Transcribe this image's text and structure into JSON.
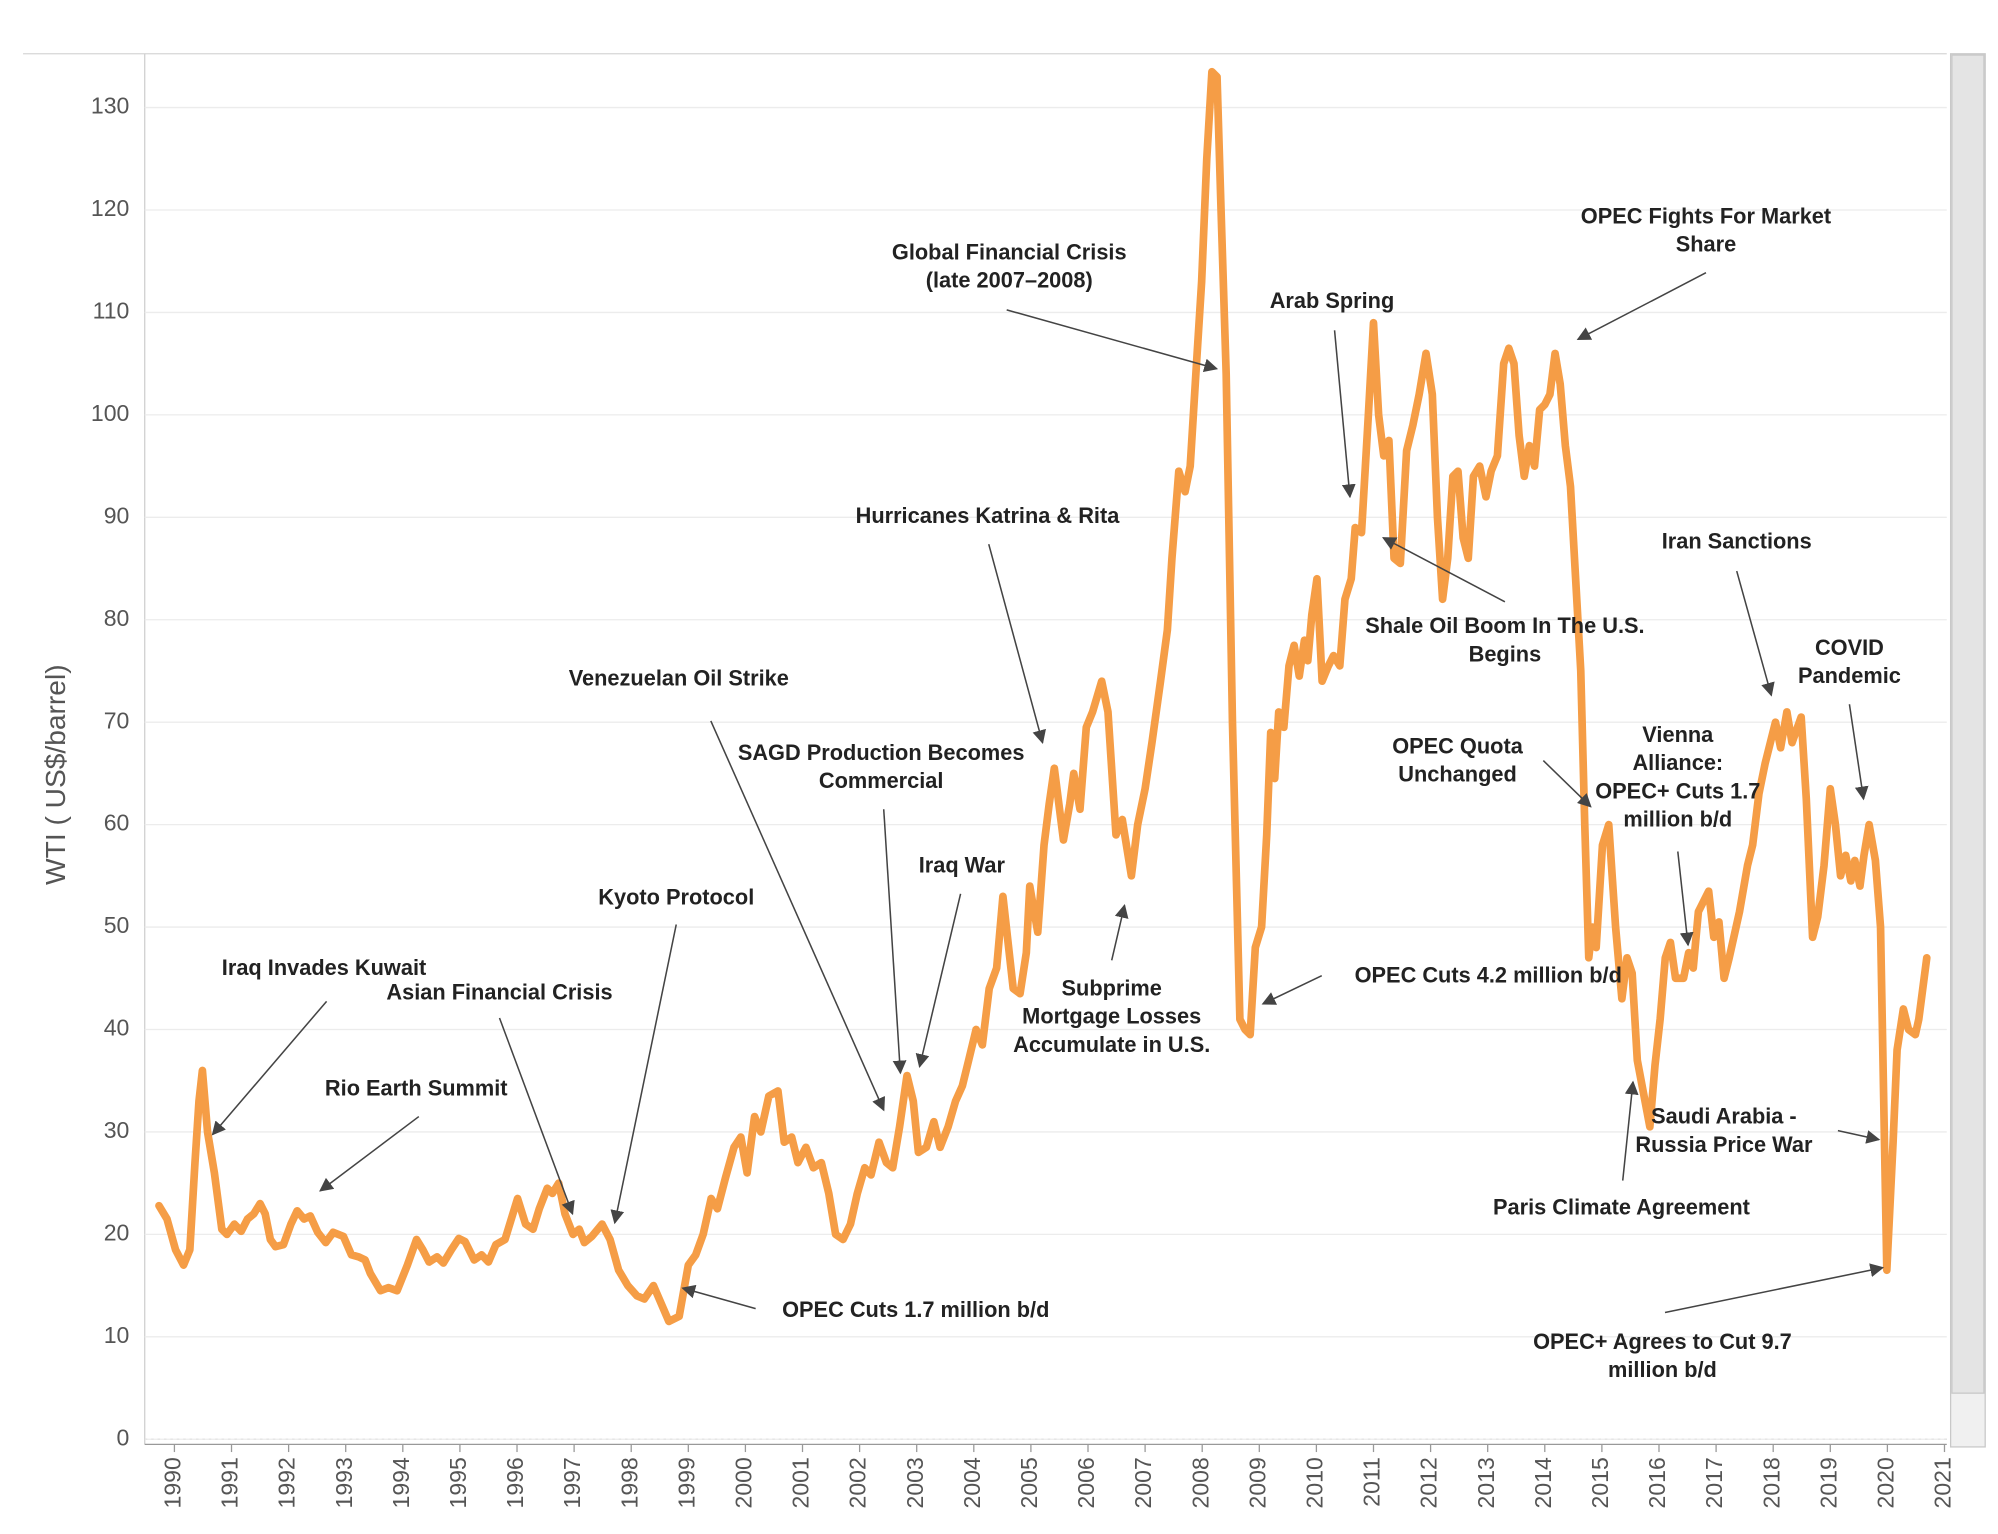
{
  "chart_data": {
    "type": "line",
    "y_label": "WTI ( US$/barrel)",
    "xlim": [
      1989.48,
      2021.04
    ],
    "xticks": [
      1990,
      1991,
      1992,
      1993,
      1994,
      1995,
      1996,
      1997,
      1998,
      1999,
      2000,
      2001,
      2002,
      2003,
      2004,
      2005,
      2006,
      2007,
      2008,
      2009,
      2010,
      2011,
      2012,
      2013,
      2014,
      2015,
      2016,
      2017,
      2018,
      2019,
      2020,
      2021
    ],
    "ylim": [
      0,
      135
    ],
    "yticks": [
      0,
      10,
      20,
      30,
      40,
      50,
      60,
      70,
      80,
      90,
      100,
      110,
      120,
      130
    ],
    "grid": true,
    "x": [
      1989.73,
      1989.87,
      1990.02,
      1990.16,
      1990.27,
      1990.36,
      1990.43,
      1990.49,
      1990.58,
      1990.7,
      1990.83,
      1990.92,
      1991.05,
      1991.17,
      1991.28,
      1991.39,
      1991.5,
      1991.59,
      1991.68,
      1991.77,
      1991.91,
      1992.04,
      1992.15,
      1992.27,
      1992.38,
      1992.51,
      1992.65,
      1992.78,
      1992.96,
      1993.1,
      1993.23,
      1993.34,
      1993.43,
      1993.61,
      1993.75,
      1993.9,
      1994.08,
      1994.24,
      1994.35,
      1994.46,
      1994.6,
      1994.71,
      1994.85,
      1994.98,
      1995.09,
      1995.25,
      1995.38,
      1995.5,
      1995.63,
      1995.79,
      1996.01,
      1996.15,
      1996.28,
      1996.39,
      1996.53,
      1996.62,
      1996.73,
      1996.84,
      1996.98,
      1997.09,
      1997.18,
      1997.31,
      1997.49,
      1997.63,
      1997.78,
      1997.94,
      1998.1,
      1998.23,
      1998.39,
      1998.66,
      1998.84,
      1999.0,
      1999.13,
      1999.26,
      1999.4,
      1999.51,
      1999.65,
      1999.8,
      1999.92,
      2000.03,
      2000.16,
      2000.27,
      2000.41,
      2000.57,
      2000.68,
      2000.81,
      2000.92,
      2001.06,
      2001.19,
      2001.33,
      2001.46,
      2001.58,
      2001.71,
      2001.84,
      2001.96,
      2002.09,
      2002.2,
      2002.34,
      2002.47,
      2002.58,
      2002.7,
      2002.83,
      2002.94,
      2003.03,
      2003.17,
      2003.3,
      2003.41,
      2003.55,
      2003.68,
      2003.8,
      2003.91,
      2004.04,
      2004.15,
      2004.27,
      2004.4,
      2004.51,
      2004.69,
      2004.81,
      2004.92,
      2004.98,
      2005.12,
      2005.23,
      2005.32,
      2005.41,
      2005.57,
      2005.68,
      2005.75,
      2005.86,
      2005.97,
      2006.08,
      2006.24,
      2006.35,
      2006.49,
      2006.6,
      2006.76,
      2006.87,
      2007.0,
      2007.12,
      2007.27,
      2007.39,
      2007.47,
      2007.59,
      2007.7,
      2007.79,
      2007.9,
      2007.99,
      2008.08,
      2008.17,
      2008.26,
      2008.33,
      2008.42,
      2008.53,
      2008.66,
      2008.75,
      2008.84,
      2008.93,
      2009.04,
      2009.13,
      2009.2,
      2009.27,
      2009.34,
      2009.43,
      2009.52,
      2009.61,
      2009.7,
      2009.79,
      2009.85,
      2009.92,
      2010.01,
      2010.1,
      2010.21,
      2010.3,
      2010.41,
      2010.5,
      2010.61,
      2010.68,
      2010.79,
      2010.91,
      2011.0,
      2011.09,
      2011.18,
      2011.27,
      2011.36,
      2011.47,
      2011.58,
      2011.69,
      2011.8,
      2011.92,
      2012.03,
      2012.12,
      2012.21,
      2012.3,
      2012.39,
      2012.48,
      2012.57,
      2012.66,
      2012.75,
      2012.86,
      2012.97,
      2013.06,
      2013.17,
      2013.28,
      2013.37,
      2013.46,
      2013.55,
      2013.64,
      2013.73,
      2013.82,
      2013.91,
      2014.0,
      2014.09,
      2014.18,
      2014.27,
      2014.36,
      2014.45,
      2014.54,
      2014.63,
      2014.7,
      2014.77,
      2014.83,
      2014.9,
      2015.01,
      2015.12,
      2015.24,
      2015.35,
      2015.44,
      2015.53,
      2015.62,
      2015.84,
      2015.93,
      2016.02,
      2016.11,
      2016.2,
      2016.29,
      2016.43,
      2016.52,
      2016.6,
      2016.69,
      2016.78,
      2016.87,
      2016.96,
      2017.05,
      2017.14,
      2017.23,
      2017.41,
      2017.55,
      2017.64,
      2017.75,
      2017.86,
      2018.04,
      2018.13,
      2018.24,
      2018.33,
      2018.49,
      2018.58,
      2018.69,
      2018.78,
      2018.89,
      2019.0,
      2019.09,
      2019.18,
      2019.27,
      2019.36,
      2019.43,
      2019.52,
      2019.59,
      2019.68,
      2019.79,
      2019.88,
      2019.99,
      2020.1,
      2020.17,
      2020.28,
      2020.37,
      2020.49,
      2020.55,
      2020.69
    ],
    "series": [
      {
        "color": "#f59d46",
        "values": [
          22.8,
          21.5,
          18.5,
          17,
          18.5,
          27,
          33,
          36,
          30,
          26,
          20.5,
          20,
          21,
          20.3,
          21.5,
          22,
          23,
          22,
          19.5,
          18.8,
          19,
          21,
          22.3,
          21.5,
          21.8,
          20.2,
          19.2,
          20.2,
          19.8,
          18,
          17.8,
          17.5,
          16.2,
          14.5,
          14.8,
          14.5,
          17,
          19.5,
          18.5,
          17.3,
          17.8,
          17.2,
          18.5,
          19.6,
          19.3,
          17.5,
          18,
          17.3,
          19,
          19.5,
          23.5,
          21,
          20.5,
          22.5,
          24.5,
          24,
          25,
          22,
          20,
          20.5,
          19.2,
          19.8,
          21,
          19.5,
          16.5,
          15,
          14,
          13.7,
          15,
          11.5,
          12,
          17,
          18,
          20,
          23.5,
          22.5,
          25.5,
          28.5,
          29.5,
          26,
          31.5,
          30,
          33.5,
          34,
          29,
          29.5,
          27,
          28.5,
          26.5,
          27,
          24,
          20,
          19.5,
          21,
          24,
          26.5,
          25.8,
          29,
          27,
          26.5,
          30.5,
          35.5,
          33,
          28,
          28.5,
          31,
          28.5,
          30.5,
          33,
          34.5,
          37,
          40,
          38.5,
          44,
          46,
          53,
          44,
          43.5,
          47.5,
          54,
          49.5,
          58,
          62,
          65.5,
          58.5,
          62,
          65,
          61.5,
          69.5,
          71,
          74,
          71,
          59,
          60.5,
          55,
          60,
          63.5,
          68,
          74,
          79,
          86,
          94.5,
          92.5,
          95,
          105,
          113,
          125,
          133.5,
          133,
          120,
          104,
          70,
          41,
          40,
          39.5,
          48,
          50,
          59,
          69,
          64.5,
          71,
          69.5,
          75.5,
          77.5,
          74.5,
          78,
          76,
          80.5,
          84,
          74,
          75.5,
          76.5,
          75.5,
          82,
          84,
          89,
          88.5,
          100,
          109,
          100,
          96,
          97.5,
          86,
          85.5,
          96.5,
          99,
          102,
          106,
          102,
          90,
          82,
          86,
          94,
          94.5,
          88,
          86,
          94,
          95,
          92,
          94.5,
          96,
          105,
          106.5,
          105,
          98,
          94,
          97,
          95,
          100.5,
          101,
          102,
          106,
          103,
          97,
          93,
          84,
          75,
          60,
          47,
          50,
          48,
          58,
          60,
          50,
          43,
          47,
          45.5,
          37,
          30.5,
          36.5,
          41,
          47,
          48.5,
          45,
          45,
          47.5,
          46,
          51.5,
          52.5,
          53.5,
          49,
          50.5,
          45,
          47,
          51.5,
          56,
          58,
          63,
          66,
          70,
          67.5,
          71,
          68,
          70.5,
          62.5,
          49,
          51,
          56,
          63.5,
          60,
          55,
          57,
          54.5,
          56.5,
          54,
          57,
          60,
          56.5,
          50,
          16.5,
          29,
          38,
          42,
          40,
          39.5,
          41,
          47
        ]
      }
    ],
    "annotations": [
      {
        "text": [
          "Iraq Invades Kuwait"
        ]
      },
      {
        "text": [
          "Asian Financial Crisis"
        ]
      },
      {
        "text": [
          "Rio Earth Summit"
        ]
      },
      {
        "text": [
          "Kyoto Protocol"
        ]
      },
      {
        "text": [
          "Venezuelan Oil Strike"
        ]
      },
      {
        "text": [
          "SAGD Production Becomes",
          "Commercial"
        ]
      },
      {
        "text": [
          "Iraq War"
        ]
      },
      {
        "text": [
          "Hurricanes Katrina & Rita"
        ]
      },
      {
        "text": [
          "Global Financial Crisis",
          "(late 2007–2008)"
        ]
      },
      {
        "text": [
          "Arab Spring"
        ]
      },
      {
        "text": [
          "Shale Oil Boom In The U.S.",
          "Begins"
        ]
      },
      {
        "text": [
          "OPEC Fights For Market",
          "Share"
        ]
      },
      {
        "text": [
          "Subprime",
          "Mortgage Losses",
          "Accumulate in U.S."
        ]
      },
      {
        "text": [
          "OPEC Cuts 4.2 million b/d"
        ]
      },
      {
        "text": [
          "OPEC Cuts 1.7 million b/d"
        ]
      },
      {
        "text": [
          "OPEC Quota",
          "Unchanged"
        ]
      },
      {
        "text": [
          "Vienna",
          "Alliance:",
          "OPEC+ Cuts 1.7",
          "million b/d"
        ]
      },
      {
        "text": [
          "Iran Sanctions"
        ]
      },
      {
        "text": [
          "COVID",
          "Pandemic"
        ]
      },
      {
        "text": [
          "Paris Climate Agreement"
        ]
      },
      {
        "text": [
          "Saudi Arabia -",
          "Russia Price War"
        ]
      },
      {
        "text": [
          "OPEC+ Agrees to Cut 9.7",
          "million b/d"
        ]
      }
    ]
  }
}
